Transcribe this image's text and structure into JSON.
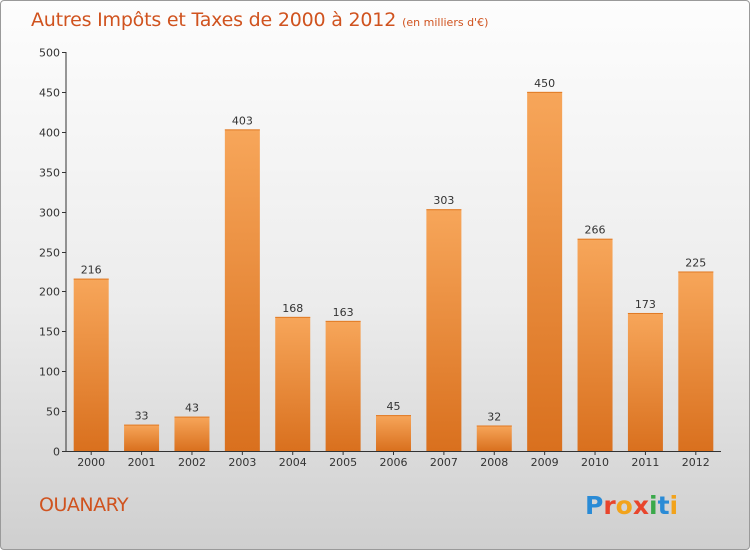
{
  "chart_data": {
    "type": "bar",
    "title": "Autres Impôts et Taxes de 2000 à 2012",
    "subtitle": "(en milliers d'€)",
    "categories": [
      "2000",
      "2001",
      "2002",
      "2003",
      "2004",
      "2005",
      "2006",
      "2007",
      "2008",
      "2009",
      "2010",
      "2011",
      "2012"
    ],
    "values": [
      216,
      33,
      43,
      403,
      168,
      163,
      45,
      303,
      32,
      450,
      266,
      173,
      225
    ],
    "data_labels": [
      "216",
      "33",
      "43",
      "403",
      "168",
      "163",
      "45",
      "303",
      "32",
      "450",
      "266",
      "173",
      "225"
    ],
    "ylim": [
      0,
      500
    ],
    "yticks": [
      0,
      50,
      100,
      150,
      200,
      250,
      300,
      350,
      400,
      450,
      500
    ],
    "xlabel": "",
    "ylabel": "",
    "grid": false,
    "bar_color_top": "#f7a65a",
    "bar_color_bottom": "#d9701e",
    "title_color": "#d0531f"
  },
  "footer": {
    "place_name": "OUANARY",
    "brand_letters": [
      {
        "char": "P",
        "color": "#2a8bd6"
      },
      {
        "char": "r",
        "color": "#e8452c"
      },
      {
        "char": "o",
        "color": "#f2a31b"
      },
      {
        "char": "x",
        "color": "#e8452c"
      },
      {
        "char": "i",
        "color": "#3aa94a"
      },
      {
        "char": "t",
        "color": "#2a8bd6"
      },
      {
        "char": "i",
        "color": "#f2a31b"
      }
    ]
  }
}
